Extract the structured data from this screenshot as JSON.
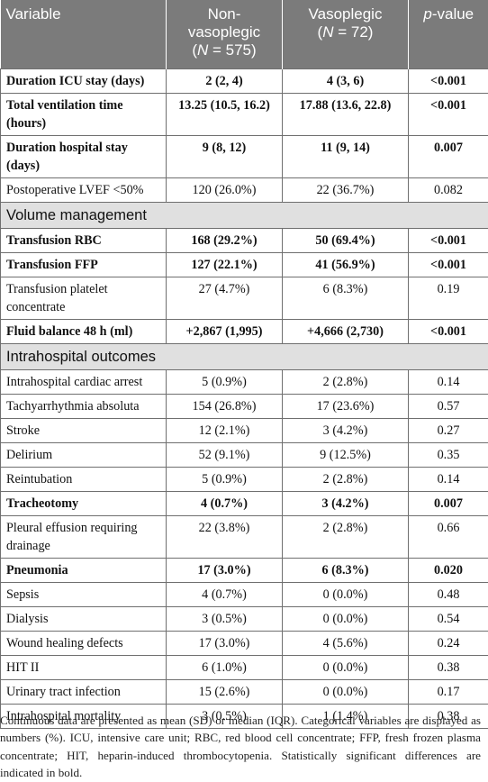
{
  "header": {
    "variable": "Variable",
    "non_vaso_title": "Non-vasoplegic",
    "non_vaso_n_prefix": "(",
    "non_vaso_n_italic": "N",
    "non_vaso_n_value": " = 575)",
    "vaso_title": "Vasoplegic",
    "vaso_n_prefix": "(",
    "vaso_n_italic": "N",
    "vaso_n_value": " = 72)",
    "p_italic": "p",
    "p_rest": "-value"
  },
  "rows": [
    {
      "label": "Duration ICU stay (days)",
      "non": "2 (2, 4)",
      "vaso": "4 (3, 6)",
      "p": "<0.001"
    },
    {
      "label": "Total ventilation time (hours)",
      "non": "13.25 (10.5, 16.2)",
      "vaso": "17.88 (13.6, 22.8)",
      "p": "<0.001"
    },
    {
      "label": "Duration hospital stay (days)",
      "non": "9 (8, 12)",
      "vaso": "11 (9, 14)",
      "p": "0.007"
    },
    {
      "label": "Postoperative LVEF <50%",
      "non": "120 (26.0%)",
      "vaso": "22 (36.7%)",
      "p": "0.082"
    },
    {
      "section": "Volume management"
    },
    {
      "label": "Transfusion RBC",
      "non": "168 (29.2%)",
      "vaso": "50 (69.4%)",
      "p": "<0.001"
    },
    {
      "label": "Transfusion FFP",
      "non": "127 (22.1%)",
      "vaso": "41 (56.9%)",
      "p": "<0.001"
    },
    {
      "label": "Transfusion platelet concentrate",
      "non": "27 (4.7%)",
      "vaso": "6 (8.3%)",
      "p": "0.19"
    },
    {
      "label": "Fluid balance 48 h (ml)",
      "non": "+2,867 (1,995)",
      "vaso": "+4,666 (2,730)",
      "p": "<0.001"
    },
    {
      "section": "Intrahospital outcomes"
    },
    {
      "label": "Intrahospital cardiac arrest",
      "non": "5 (0.9%)",
      "vaso": "2 (2.8%)",
      "p": "0.14"
    },
    {
      "label": "Tachyarrhythmia absoluta",
      "non": "154 (26.8%)",
      "vaso": "17 (23.6%)",
      "p": "0.57"
    },
    {
      "label": "Stroke",
      "non": "12 (2.1%)",
      "vaso": "3 (4.2%)",
      "p": "0.27"
    },
    {
      "label": "Delirium",
      "non": "52 (9.1%)",
      "vaso": "9 (12.5%)",
      "p": "0.35"
    },
    {
      "label": "Reintubation",
      "non": "5 (0.9%)",
      "vaso": "2 (2.8%)",
      "p": "0.14"
    },
    {
      "label": "Tracheotomy",
      "non": "4 (0.7%)",
      "vaso": "3 (4.2%)",
      "p": "0.007"
    },
    {
      "label": "Pleural effusion requiring drainage",
      "non": "22 (3.8%)",
      "vaso": "2 (2.8%)",
      "p": "0.66"
    },
    {
      "label": "Pneumonia",
      "non": "17 (3.0%)",
      "vaso": "6 (8.3%)",
      "p": "0.020"
    },
    {
      "label": "Sepsis",
      "non": "4 (0.7%)",
      "vaso": "0 (0.0%)",
      "p": "0.48"
    },
    {
      "label": "Dialysis",
      "non": "3 (0.5%)",
      "vaso": "0 (0.0%)",
      "p": "0.54"
    },
    {
      "label": "Wound healing defects",
      "non": "17 (3.0%)",
      "vaso": "4 (5.6%)",
      "p": "0.24"
    },
    {
      "label": "HIT II",
      "non": "6 (1.0%)",
      "vaso": "0 (0.0%)",
      "p": "0.38"
    },
    {
      "label": "Urinary tract infection",
      "non": "15 (2.6%)",
      "vaso": "0 (0.0%)",
      "p": "0.17"
    },
    {
      "label": "Intrahospital mortality",
      "non": "3 (0.5%)",
      "vaso": "1 (1.4%)",
      "p": "0.38"
    }
  ],
  "footnote": "Continuous data are presented as mean (SD) or median (IQR). Categorical variables are displayed as numbers (%). ICU, intensive care unit; RBC, red blood cell concentrate; FFP, fresh frozen plasma concentrate; HIT, heparin-induced thrombocytopenia. Statistically significant differences are indicated in bold."
}
